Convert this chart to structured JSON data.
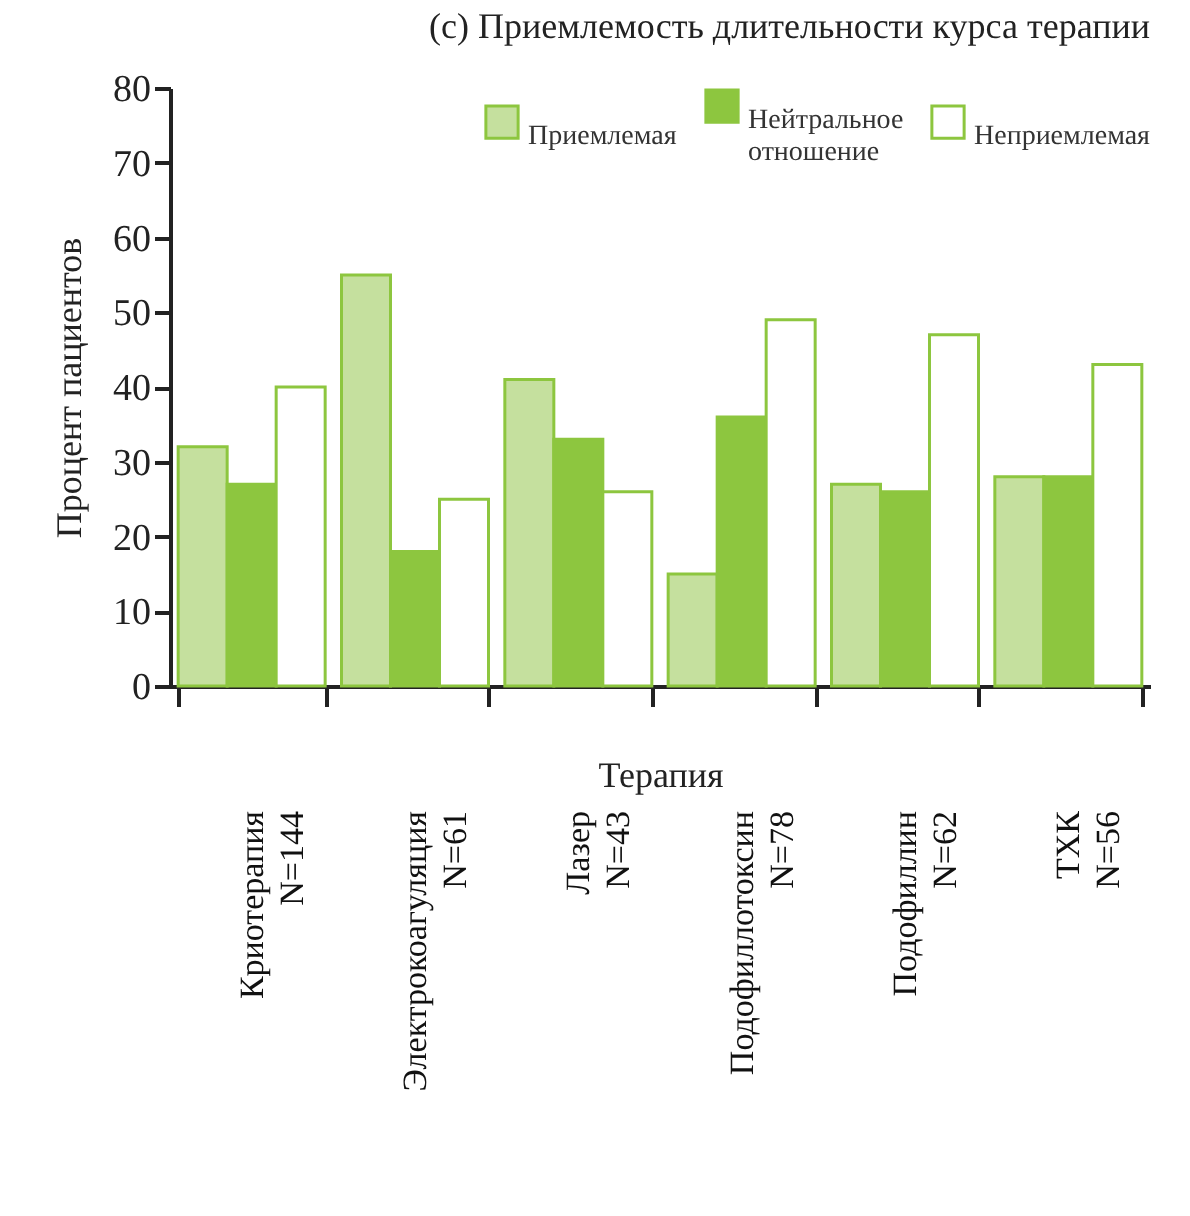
{
  "chart_data": {
    "type": "bar",
    "title": "(c) Приемлемость длительности курса терапии",
    "xlabel": "Терапия",
    "ylabel": "Процент пациентов",
    "categories": [
      "Криотерапия\nN=144",
      "Электрокоагуляция\nN=61",
      "Лазер\nN=43",
      "Подофиллотоксин\nN=78",
      "Подофиллин\nN=62",
      "ТХК\nN=56"
    ],
    "series": [
      {
        "name": "Приемлемая",
        "color": "#c5e09e",
        "values": [
          32,
          55,
          41,
          15,
          27,
          28
        ]
      },
      {
        "name": "Нейтральное\nотношение",
        "color": "#8dc63f",
        "values": [
          27,
          18,
          33,
          36,
          26,
          28
        ]
      },
      {
        "name": "Неприемлемая",
        "color": "#ffffff",
        "values": [
          40,
          25,
          26,
          49,
          47,
          43
        ]
      }
    ],
    "ylim": [
      0,
      80
    ],
    "yticks": [
      0,
      10,
      20,
      30,
      40,
      50,
      60,
      70,
      80
    ],
    "grid": false,
    "legend": "top right"
  }
}
